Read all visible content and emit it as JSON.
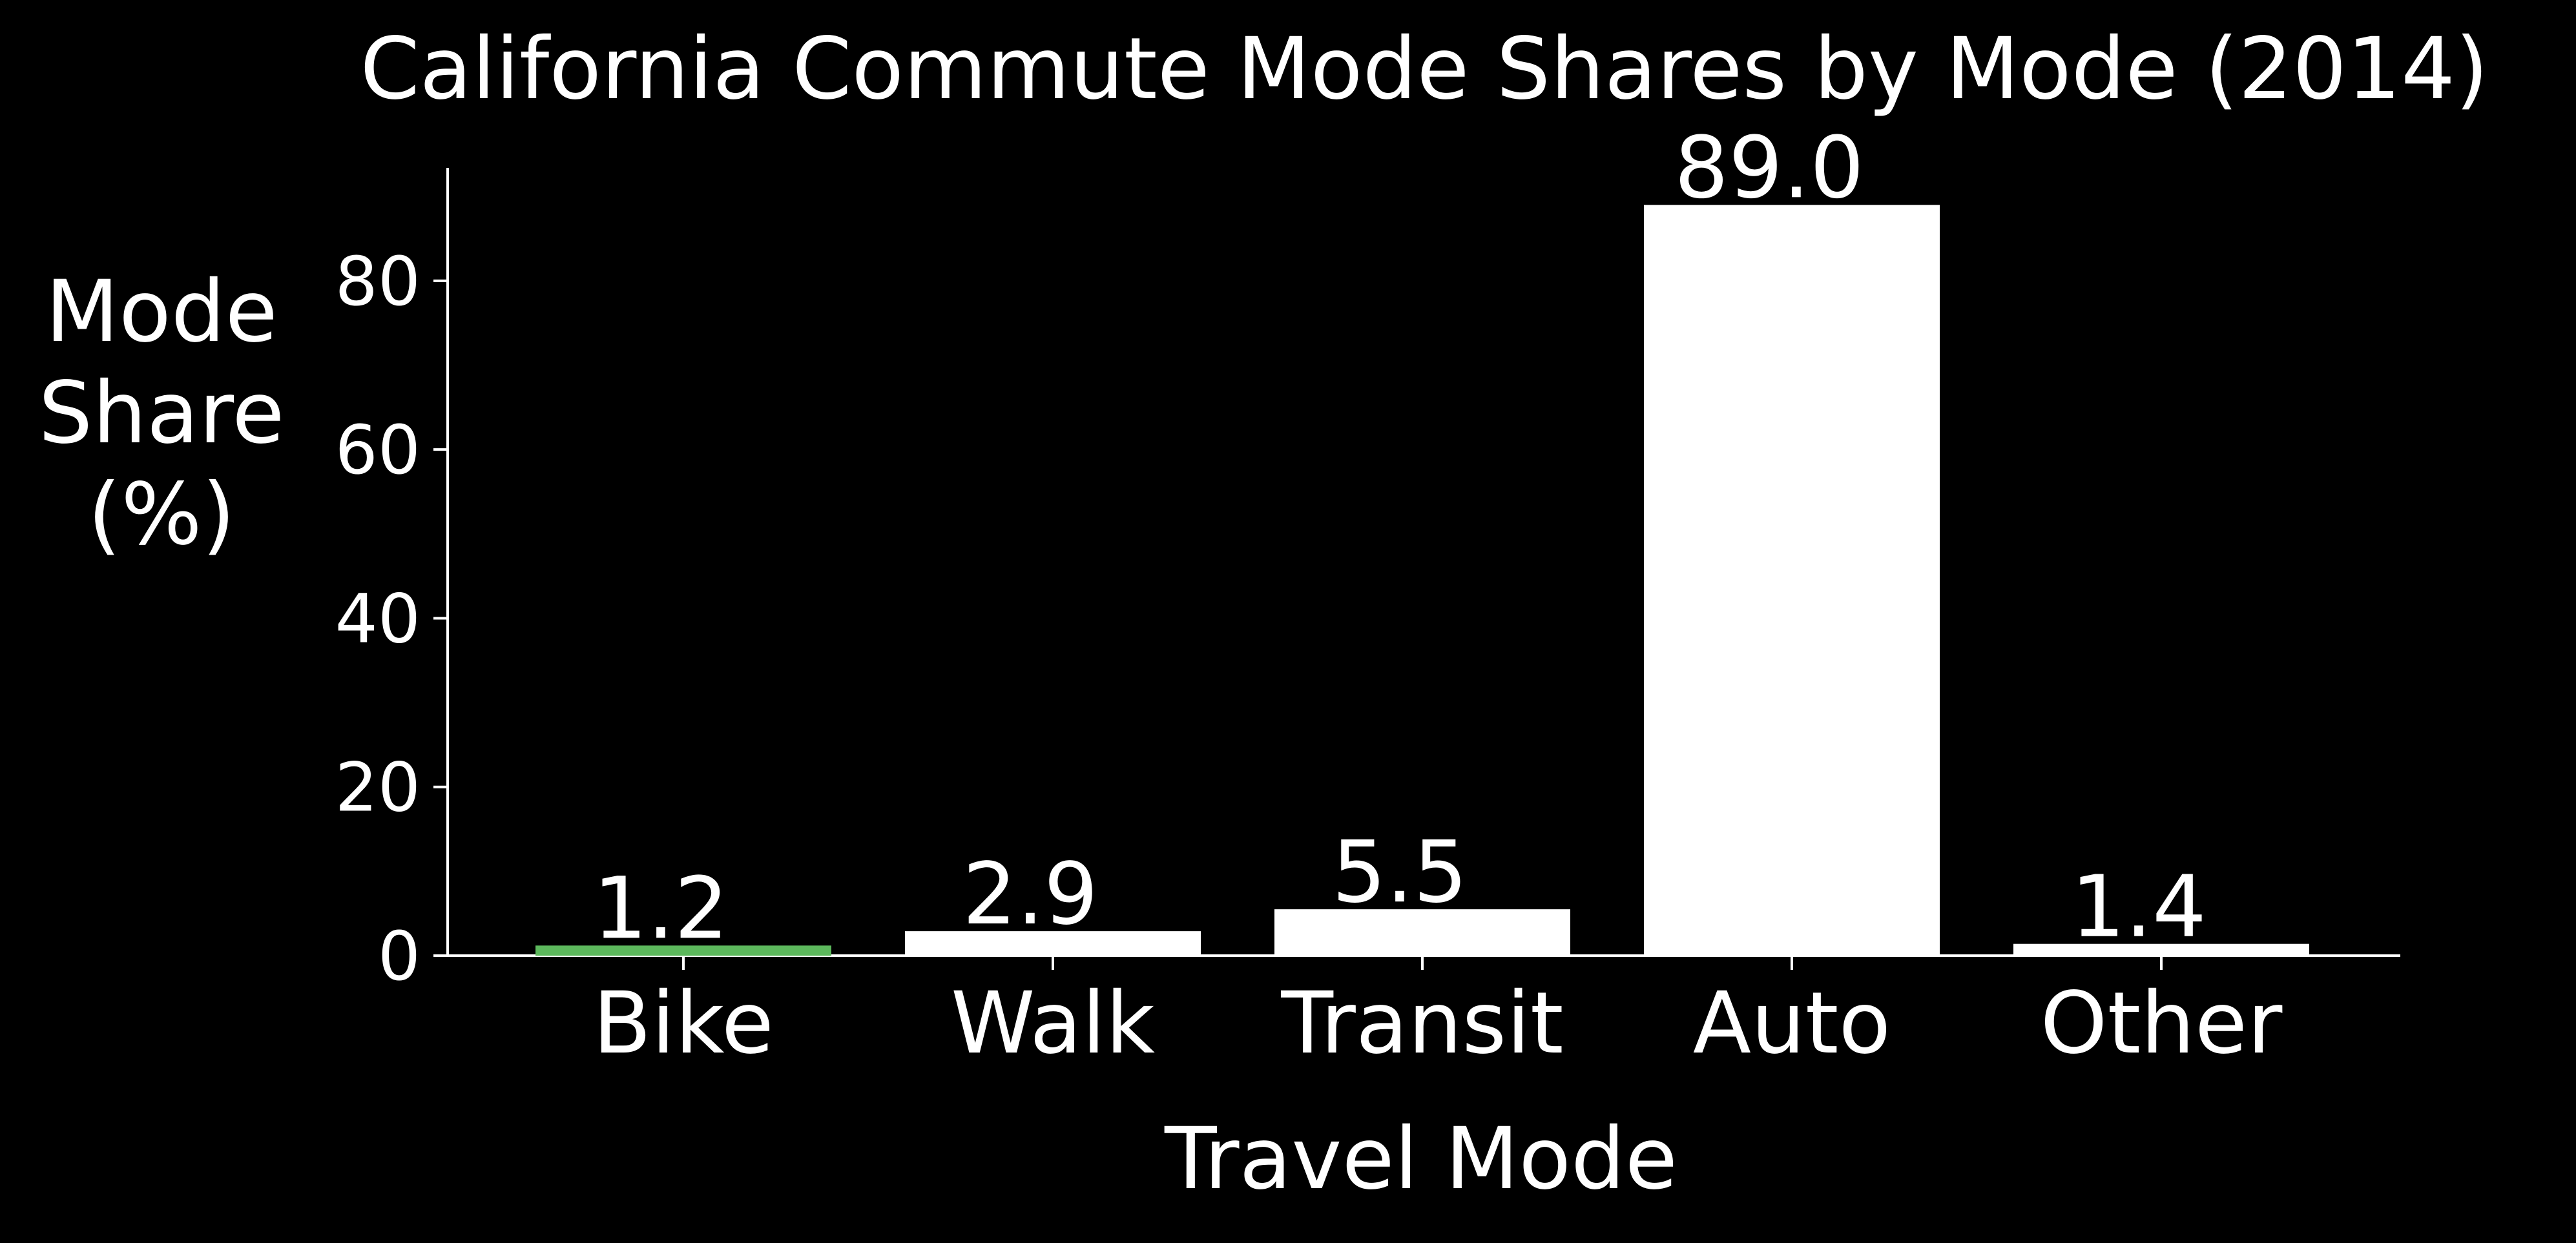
{
  "chart_data": {
    "type": "bar",
    "title": "California Commute Mode Shares by Mode (2014)",
    "xlabel": "Travel Mode",
    "ylabel": [
      "Mode",
      "Share",
      "(%)"
    ],
    "categories": [
      "Bike",
      "Walk",
      "Transit",
      "Auto",
      "Other"
    ],
    "values": [
      1.2,
      2.9,
      5.5,
      89.0,
      1.4
    ],
    "data_labels": [
      "1.2",
      "2.9",
      "5.5",
      "89.0",
      "1.4"
    ],
    "bar_colors": [
      "#5cb85c",
      "#ffffff",
      "#ffffff",
      "#ffffff",
      "#ffffff"
    ],
    "yticks": [
      0,
      20,
      40,
      60,
      80
    ],
    "ytick_labels": [
      "0",
      "20",
      "40",
      "60",
      "80"
    ],
    "ylim": [
      0,
      93.5
    ],
    "grid": false,
    "legend": "none",
    "background": "#000000",
    "text_color": "#ffffff"
  }
}
